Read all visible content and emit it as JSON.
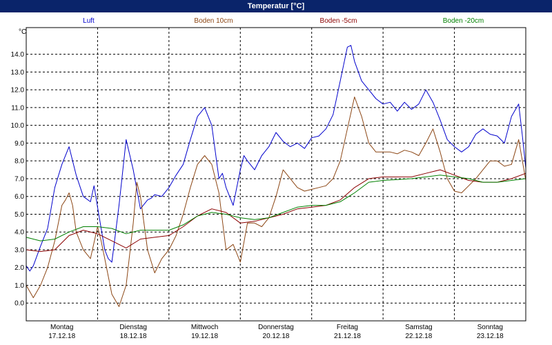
{
  "window": {
    "title": "Temperatur [°C]"
  },
  "chart_data": {
    "type": "line",
    "ylabel": "°C",
    "ylim": [
      -1.0,
      15.5
    ],
    "yticks": [
      0.0,
      1.0,
      2.0,
      3.0,
      4.0,
      5.0,
      6.0,
      7.0,
      8.0,
      9.0,
      10.0,
      11.0,
      12.0,
      13.0,
      14.0
    ],
    "xlim": [
      0,
      7
    ],
    "x_unit": "days since 17.12.18 00:00",
    "day_labels": [
      {
        "day": "Montag",
        "date": "17.12.18"
      },
      {
        "day": "Dienstag",
        "date": "18.12.18"
      },
      {
        "day": "Mittwoch",
        "date": "19.12.18"
      },
      {
        "day": "Donnerstag",
        "date": "20.12.18"
      },
      {
        "day": "Freitag",
        "date": "21.12.18"
      },
      {
        "day": "Samstag",
        "date": "22.12.18"
      },
      {
        "day": "Sonntag",
        "date": "23.12.18"
      }
    ],
    "grid": true,
    "legend_position": "top",
    "series": [
      {
        "name": "Luft",
        "color": "#0000cc",
        "x": [
          0.0,
          0.05,
          0.1,
          0.2,
          0.3,
          0.4,
          0.5,
          0.6,
          0.7,
          0.8,
          0.9,
          0.95,
          1.0,
          1.1,
          1.15,
          1.2,
          1.3,
          1.4,
          1.5,
          1.6,
          1.7,
          1.75,
          1.8,
          1.9,
          2.0,
          2.1,
          2.2,
          2.3,
          2.4,
          2.5,
          2.6,
          2.7,
          2.75,
          2.8,
          2.9,
          3.0,
          3.05,
          3.1,
          3.2,
          3.3,
          3.4,
          3.5,
          3.6,
          3.7,
          3.8,
          3.9,
          4.0,
          4.1,
          4.2,
          4.3,
          4.4,
          4.5,
          4.55,
          4.6,
          4.7,
          4.8,
          4.9,
          5.0,
          5.1,
          5.2,
          5.3,
          5.4,
          5.5,
          5.6,
          5.7,
          5.8,
          5.9,
          6.0,
          6.1,
          6.2,
          6.3,
          6.4,
          6.5,
          6.6,
          6.7,
          6.8,
          6.9,
          6.95,
          7.0
        ],
        "y": [
          2.1,
          1.8,
          2.1,
          3.2,
          4.2,
          6.5,
          7.8,
          8.8,
          7.2,
          6.0,
          5.7,
          6.6,
          5.4,
          3.0,
          2.5,
          2.3,
          5.5,
          9.2,
          7.5,
          5.3,
          5.8,
          5.9,
          6.1,
          6.0,
          6.5,
          7.2,
          7.8,
          9.2,
          10.5,
          11.0,
          10.0,
          7.0,
          7.3,
          6.5,
          5.5,
          7.5,
          8.3,
          8.0,
          7.5,
          8.3,
          8.8,
          9.6,
          9.1,
          8.8,
          9.0,
          8.7,
          9.3,
          9.4,
          9.8,
          10.6,
          12.5,
          14.4,
          14.5,
          13.6,
          12.5,
          12.0,
          11.5,
          11.2,
          11.3,
          10.8,
          11.3,
          10.9,
          11.2,
          12.0,
          11.3,
          10.3,
          9.2,
          8.8,
          8.5,
          8.8,
          9.5,
          9.8,
          9.5,
          9.4,
          9.0,
          10.5,
          11.2,
          9.5,
          7.6
        ]
      },
      {
        "name": "Boden 10cm",
        "color": "#8b4513",
        "x": [
          0.0,
          0.1,
          0.2,
          0.3,
          0.4,
          0.5,
          0.55,
          0.6,
          0.65,
          0.7,
          0.8,
          0.9,
          1.0,
          1.05,
          1.1,
          1.2,
          1.3,
          1.4,
          1.5,
          1.55,
          1.6,
          1.7,
          1.8,
          1.9,
          2.0,
          2.1,
          2.2,
          2.3,
          2.4,
          2.5,
          2.6,
          2.7,
          2.8,
          2.9,
          3.0,
          3.1,
          3.2,
          3.3,
          3.4,
          3.5,
          3.6,
          3.7,
          3.8,
          3.9,
          4.0,
          4.1,
          4.2,
          4.3,
          4.4,
          4.5,
          4.6,
          4.7,
          4.8,
          4.9,
          5.0,
          5.1,
          5.2,
          5.3,
          5.4,
          5.5,
          5.6,
          5.7,
          5.8,
          5.9,
          6.0,
          6.1,
          6.2,
          6.3,
          6.4,
          6.5,
          6.6,
          6.7,
          6.8,
          6.9,
          7.0
        ],
        "y": [
          1.0,
          0.3,
          1.0,
          2.0,
          3.5,
          5.5,
          5.8,
          6.2,
          5.5,
          4.0,
          3.0,
          2.5,
          4.3,
          3.5,
          2.5,
          0.5,
          -0.2,
          1.0,
          4.5,
          6.8,
          6.0,
          3.0,
          1.7,
          2.5,
          3.0,
          3.8,
          5.0,
          6.5,
          7.8,
          8.3,
          7.8,
          6.2,
          3.0,
          3.3,
          2.3,
          4.5,
          4.5,
          4.3,
          4.8,
          6.0,
          7.5,
          7.0,
          6.5,
          6.3,
          6.4,
          6.5,
          6.6,
          7.0,
          8.0,
          9.8,
          11.6,
          10.5,
          9.0,
          8.5,
          8.5,
          8.5,
          8.4,
          8.6,
          8.5,
          8.3,
          9.0,
          9.8,
          8.5,
          7.0,
          6.3,
          6.2,
          6.6,
          7.0,
          7.5,
          8.0,
          8.0,
          7.7,
          7.8,
          9.2,
          6.9
        ]
      },
      {
        "name": "Boden -5cm",
        "color": "#8b0000",
        "x": [
          0.0,
          0.2,
          0.4,
          0.6,
          0.8,
          1.0,
          1.2,
          1.4,
          1.6,
          1.8,
          2.0,
          2.2,
          2.4,
          2.6,
          2.8,
          3.0,
          3.2,
          3.4,
          3.6,
          3.8,
          4.0,
          4.2,
          4.4,
          4.6,
          4.8,
          5.0,
          5.2,
          5.4,
          5.6,
          5.8,
          6.0,
          6.2,
          6.4,
          6.6,
          6.8,
          7.0
        ],
        "y": [
          3.0,
          2.9,
          3.0,
          3.8,
          4.1,
          3.9,
          3.5,
          3.1,
          3.6,
          3.7,
          3.8,
          4.3,
          4.9,
          5.3,
          5.1,
          4.5,
          4.6,
          4.8,
          5.0,
          5.3,
          5.4,
          5.5,
          5.8,
          6.5,
          7.0,
          7.1,
          7.1,
          7.1,
          7.3,
          7.5,
          7.2,
          6.9,
          6.8,
          6.8,
          7.0,
          7.3
        ]
      },
      {
        "name": "Boden -20cm",
        "color": "#008000",
        "x": [
          0.0,
          0.2,
          0.4,
          0.6,
          0.8,
          1.0,
          1.2,
          1.4,
          1.6,
          1.8,
          2.0,
          2.2,
          2.4,
          2.6,
          2.8,
          3.0,
          3.2,
          3.4,
          3.6,
          3.8,
          4.0,
          4.2,
          4.4,
          4.6,
          4.8,
          5.0,
          5.2,
          5.4,
          5.6,
          5.8,
          6.0,
          6.2,
          6.4,
          6.6,
          6.8,
          7.0
        ],
        "y": [
          3.7,
          3.5,
          3.6,
          4.0,
          4.3,
          4.3,
          4.2,
          3.9,
          4.1,
          4.1,
          4.1,
          4.4,
          4.9,
          5.1,
          5.0,
          4.8,
          4.7,
          4.8,
          5.1,
          5.4,
          5.5,
          5.5,
          5.7,
          6.2,
          6.8,
          6.9,
          6.95,
          7.0,
          7.1,
          7.2,
          7.1,
          7.0,
          6.8,
          6.8,
          6.9,
          7.0
        ]
      }
    ]
  }
}
